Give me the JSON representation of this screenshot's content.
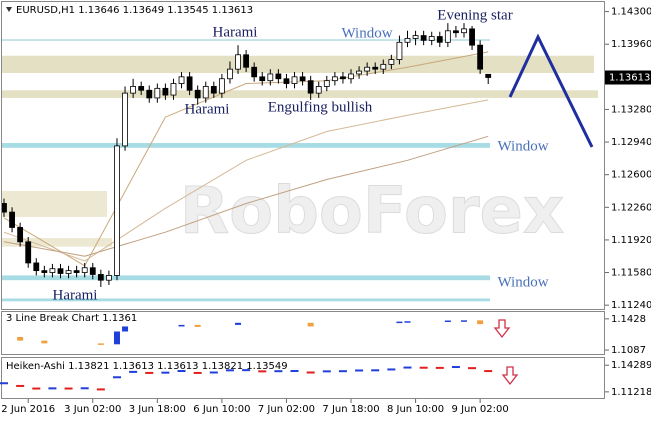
{
  "chart_data": [
    {
      "type": "candlestick",
      "title": "EURUSD,H1  1.13646 1.13649 1.13545 1.13613",
      "watermark": "RoboForex",
      "categories": [
        null,
        null,
        null,
        "2 Jun 2016",
        null,
        null,
        null,
        null,
        null,
        null,
        null,
        "3 Jun 02:00",
        null,
        null,
        null,
        null,
        null,
        null,
        null,
        "3 Jun 18:00",
        null,
        null,
        null,
        null,
        null,
        null,
        null,
        "6 Jun 10:00",
        null,
        null,
        null,
        null,
        null,
        null,
        null,
        "7 Jun 02:00",
        null,
        null,
        null,
        null,
        null,
        null,
        null,
        "7 Jun 18:00",
        null,
        null,
        null,
        null,
        null,
        null,
        null,
        "8 Jun 10:00",
        null,
        null,
        null,
        null,
        null,
        null,
        null,
        "9 Jun 02:00",
        null
      ],
      "open": [
        1.123,
        1.1221,
        1.1205,
        1.119,
        1.1168,
        1.116,
        1.1158,
        1.1162,
        1.1157,
        1.116,
        1.1158,
        1.1163,
        1.1156,
        1.115,
        1.1155,
        1.129,
        1.1345,
        1.1352,
        1.1348,
        1.134,
        1.135,
        1.1343,
        1.1355,
        1.1362,
        1.1348,
        1.134,
        1.1352,
        1.1345,
        1.136,
        1.137,
        1.1385,
        1.1372,
        1.1362,
        1.1358,
        1.1365,
        1.136,
        1.1355,
        1.1362,
        1.1358,
        1.1345,
        1.1352,
        1.1358,
        1.1362,
        1.136,
        1.1365,
        1.1368,
        1.1372,
        1.137,
        1.1375,
        1.138,
        1.1398,
        1.1402,
        1.1405,
        1.14,
        1.1404,
        1.1398,
        1.141,
        1.1408,
        1.1412,
        1.1395,
        1.13646
      ],
      "high": [
        1.1235,
        1.1226,
        1.121,
        1.1195,
        1.1173,
        1.1165,
        1.1167,
        1.1167,
        1.1165,
        1.1165,
        1.1168,
        1.1168,
        1.1161,
        1.116,
        1.1298,
        1.1352,
        1.136,
        1.1357,
        1.1353,
        1.1355,
        1.1355,
        1.136,
        1.1367,
        1.1367,
        1.1353,
        1.1357,
        1.1357,
        1.1365,
        1.1378,
        1.1395,
        1.139,
        1.1377,
        1.1367,
        1.137,
        1.137,
        1.1365,
        1.1367,
        1.1367,
        1.1363,
        1.1357,
        1.1363,
        1.1367,
        1.1367,
        1.137,
        1.1373,
        1.1377,
        1.1377,
        1.138,
        1.1385,
        1.1405,
        1.141,
        1.141,
        1.141,
        1.1409,
        1.1409,
        1.1418,
        1.1415,
        1.1418,
        1.1415,
        1.14,
        1.13649
      ],
      "low": [
        1.1216,
        1.12,
        1.1185,
        1.1163,
        1.1155,
        1.1153,
        1.1153,
        1.1152,
        1.1152,
        1.1153,
        1.1153,
        1.1151,
        1.1143,
        1.1145,
        1.115,
        1.1285,
        1.134,
        1.1343,
        1.1335,
        1.1335,
        1.1338,
        1.1338,
        1.135,
        1.1343,
        1.1333,
        1.1335,
        1.134,
        1.134,
        1.1355,
        1.1365,
        1.1367,
        1.1357,
        1.1353,
        1.1353,
        1.1355,
        1.135,
        1.135,
        1.1353,
        1.1338,
        1.134,
        1.1347,
        1.1353,
        1.1355,
        1.1355,
        1.136,
        1.1363,
        1.1365,
        1.1365,
        1.137,
        1.1375,
        1.1393,
        1.1395,
        1.1395,
        1.1395,
        1.1393,
        1.1393,
        1.1403,
        1.1403,
        1.139,
        1.1365,
        1.13545
      ],
      "close": [
        1.1221,
        1.1205,
        1.119,
        1.1168,
        1.116,
        1.1158,
        1.1162,
        1.1157,
        1.116,
        1.1158,
        1.1163,
        1.1156,
        1.115,
        1.1155,
        1.129,
        1.1345,
        1.1352,
        1.1348,
        1.134,
        1.135,
        1.1343,
        1.1355,
        1.1362,
        1.1348,
        1.134,
        1.1352,
        1.1345,
        1.136,
        1.137,
        1.1385,
        1.1372,
        1.1362,
        1.1358,
        1.1365,
        1.136,
        1.1355,
        1.1362,
        1.1358,
        1.1345,
        1.1352,
        1.1358,
        1.1362,
        1.136,
        1.1365,
        1.1368,
        1.1372,
        1.137,
        1.1375,
        1.138,
        1.1398,
        1.1402,
        1.1405,
        1.14,
        1.1404,
        1.1398,
        1.141,
        1.1408,
        1.1412,
        1.1395,
        1.137,
        1.13613
      ],
      "up_color": "#ffffff",
      "down_color": "#000000",
      "ylim": [
        1.112,
        1.144
      ],
      "yticks": [
        {
          "value": 1.143,
          "label": "1.14300"
        },
        {
          "value": 1.1396,
          "label": "1.13960"
        },
        {
          "value": 1.1328,
          "label": "1.13280"
        },
        {
          "value": 1.1294,
          "label": "1.12940"
        },
        {
          "value": 1.126,
          "label": "1.12600"
        },
        {
          "value": 1.1226,
          "label": "1.12260"
        },
        {
          "value": 1.1192,
          "label": "1.11920"
        },
        {
          "value": 1.1158,
          "label": "1.11580"
        },
        {
          "value": 1.1124,
          "label": "1.11240"
        }
      ],
      "current_price": 1.13613,
      "moving_averages": [
        {
          "color": "#c8a878",
          "x": [
            0,
            10,
            20,
            30,
            40,
            50,
            60
          ],
          "values": [
            1.1215,
            1.1165,
            1.132,
            1.1355,
            1.1358,
            1.1372,
            1.1388
          ]
        },
        {
          "color": "#d4b896",
          "x": [
            0,
            10,
            20,
            30,
            40,
            50,
            60
          ],
          "values": [
            1.12,
            1.117,
            1.1225,
            1.1275,
            1.1305,
            1.1322,
            1.1338
          ]
        },
        {
          "color": "#c0a080",
          "x": [
            0,
            10,
            20,
            30,
            40,
            50,
            60
          ],
          "values": [
            1.119,
            1.1175,
            1.12,
            1.123,
            1.1255,
            1.1275,
            1.13
          ]
        }
      ],
      "zones": [
        {
          "from": 1.1401,
          "to": 1.14,
          "color": "#9fd4dc"
        },
        {
          "from": 1.1384,
          "to": 1.1366,
          "color": "#e4e0c4"
        },
        {
          "from": 1.1348,
          "to": 1.134,
          "color": "#e4e0c4"
        },
        {
          "from": 1.1293,
          "to": 1.1288,
          "color": "#a8dce4"
        },
        {
          "from": 1.1243,
          "to": 1.1216,
          "color": "#ece8d2"
        },
        {
          "from": 1.1194,
          "to": 1.1185,
          "color": "#ece8d2"
        },
        {
          "from": 1.1155,
          "to": 1.115,
          "color": "#a8dce4"
        },
        {
          "from": 1.1131,
          "to": 1.1128,
          "color": "#a8dce4"
        }
      ],
      "annotations": [
        "Harami",
        "Harami",
        "Engulfing bullish",
        "Evening star",
        "Window",
        "Window",
        "Window",
        "Harami"
      ]
    },
    {
      "type": "line_break",
      "title": "3 Line Break Chart 1.1361",
      "x": [
        2,
        5,
        12,
        14,
        15,
        22,
        24,
        29,
        38,
        49,
        50,
        55,
        57,
        59
      ],
      "open": [
        1.123,
        1.119,
        1.116,
        1.115,
        1.129,
        1.1345,
        1.1362,
        1.1362,
        1.1385,
        1.1385,
        1.1398,
        1.1402,
        1.141,
        1.1412
      ],
      "close": [
        1.119,
        1.116,
        1.115,
        1.129,
        1.1345,
        1.1362,
        1.134,
        1.1385,
        1.1345,
        1.1398,
        1.1402,
        1.141,
        1.1412,
        1.137
      ],
      "up_color": "#1f3fd8",
      "down_color": "#f0a040",
      "ylim": [
        1.1044,
        1.1503
      ],
      "yticks": [
        1.1428,
        1.1087
      ]
    },
    {
      "type": "heiken_ashi",
      "title": "Heiken-Ashi 1.13821 1.13613 1.13613 1.13821 1.13549",
      "x": [
        0,
        2,
        4,
        6,
        8,
        10,
        12,
        14,
        16,
        18,
        20,
        22,
        24,
        26,
        28,
        30,
        32,
        34,
        36,
        38,
        40,
        42,
        44,
        46,
        48,
        50,
        52,
        54,
        56,
        58,
        60
      ],
      "values": [
        1.1221,
        1.119,
        1.116,
        1.1162,
        1.116,
        1.1163,
        1.115,
        1.129,
        1.1352,
        1.134,
        1.1343,
        1.1362,
        1.134,
        1.1345,
        1.137,
        1.1372,
        1.1358,
        1.136,
        1.1362,
        1.1345,
        1.1358,
        1.136,
        1.1368,
        1.137,
        1.138,
        1.1402,
        1.14,
        1.1398,
        1.1408,
        1.1395,
        1.13613
      ],
      "up_color": "#1f3fd8",
      "down_color": "#e02020",
      "ylim": [
        1.1051,
        1.1512
      ],
      "yticks": [
        1.14289,
        1.11218
      ]
    }
  ]
}
